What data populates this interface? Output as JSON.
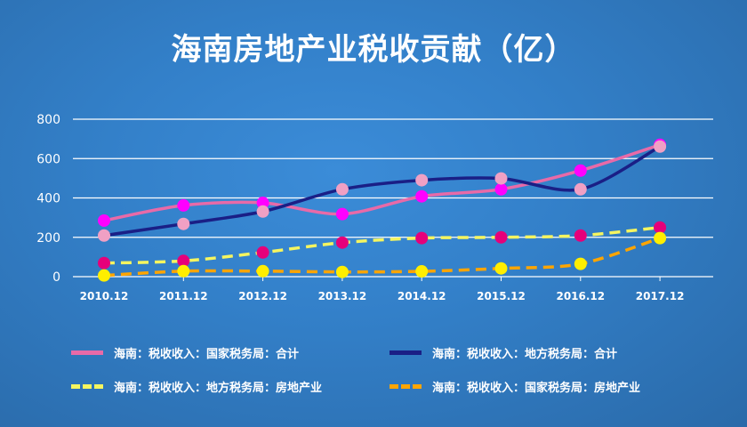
{
  "chart_data": {
    "type": "line",
    "title": "海南房地产业税收贡献（亿）",
    "categories": [
      "2010.12",
      "2011.12",
      "2012.12",
      "2013.12",
      "2014.12",
      "2015.12",
      "2016.12",
      "2017.12"
    ],
    "ylim": [
      0,
      800
    ],
    "yticks": [
      0,
      200,
      400,
      600,
      800
    ],
    "grid": true,
    "legend_position": "bottom",
    "series": [
      {
        "name": "海南：税收收入：国家税务局：合计",
        "line_color": "#e86aa8",
        "marker_color": "#ff00ff",
        "dashed": false,
        "values": [
          285,
          362,
          375,
          318,
          408,
          444,
          539,
          670
        ]
      },
      {
        "name": "海南：税收收入：地方税务局：合计",
        "line_color": "#1a1f86",
        "marker_color": "#f0a0c4",
        "dashed": false,
        "values": [
          209,
          268,
          331,
          444,
          490,
          499,
          444,
          661
        ]
      },
      {
        "name": "海南：税收收入：地方税务局：房地产业",
        "line_color": "#f5f560",
        "marker_color": "#e6007a",
        "dashed": true,
        "values": [
          69,
          80,
          123,
          173,
          196,
          200,
          209,
          250
        ]
      },
      {
        "name": "海南：税收收入：国家税务局：房地产业",
        "line_color": "#ffa500",
        "marker_color": "#ffee00",
        "dashed": true,
        "values": [
          6,
          28,
          28,
          24,
          27,
          42,
          65,
          196
        ]
      }
    ]
  }
}
